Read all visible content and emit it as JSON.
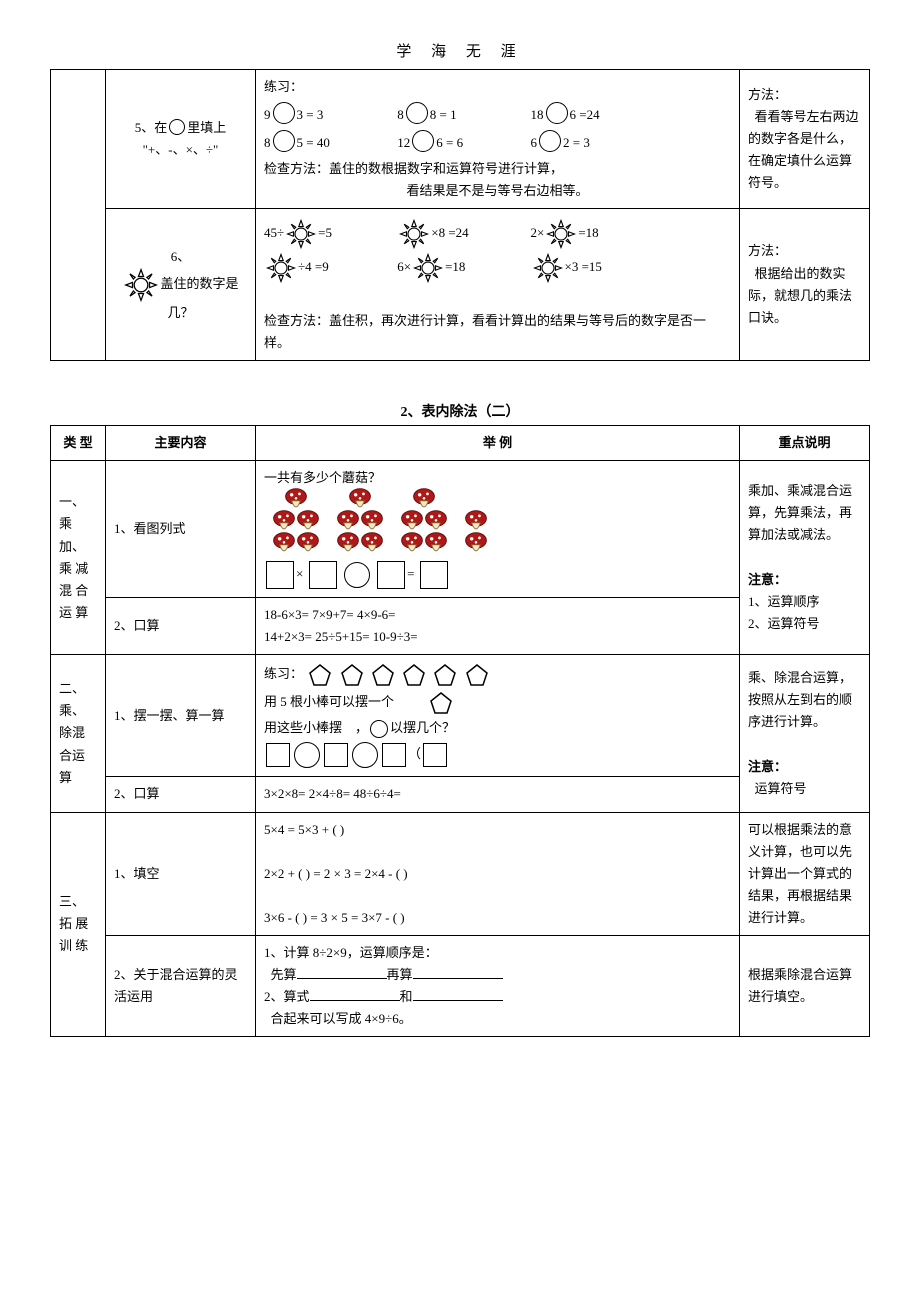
{
  "header": {
    "title": "学 海 无 涯"
  },
  "table1": {
    "row5": {
      "main_a": "5、在",
      "main_b": "里填上 \"+、-、×、÷\"",
      "ex_head": "练习：",
      "eqs1": [
        "9",
        "3 = 3",
        "8",
        "8 = 1",
        "18",
        "6 =24"
      ],
      "eqs2": [
        "8",
        "5 = 40",
        "12",
        "6 = 6",
        "6",
        "2 = 3"
      ],
      "check1": "检查方法：盖住的数根据数字和运算符号进行计算，",
      "check2": "看结果是不是与等号右边相等。",
      "note_head": "方法：",
      "note_body": "看看等号左右两边的数字各是什么，在确定填什么运算符号。"
    },
    "row6": {
      "main_num": "6、",
      "main_txt": "盖住的数字是几？",
      "eqs1": [
        "45÷",
        "=5",
        "",
        "×8 =24",
        "2×",
        "=18"
      ],
      "eqs2": [
        "",
        "÷4 =9",
        "6×",
        "=18",
        "",
        "×3 =15"
      ],
      "check": "检查方法：盖住积，再次进行计算，看看计算出的结果与等号后的数字是否一样。",
      "note_head": "方法：",
      "note_body": "根据给出的数实际，就想几的乘法口诀。"
    }
  },
  "section2_title": "2、表内除法（二）",
  "table2": {
    "headers": [
      "类 型",
      "主要内容",
      "举   例",
      "重点说明"
    ],
    "rowA": {
      "type": "一、\n乘 加、\n乘 减\n混 合\n运 算",
      "main1": "1、看图列式",
      "main2": "2、口算",
      "ex_q": "一共有多少个蘑菇？",
      "mushroom_groups": [
        5,
        5,
        5,
        2
      ],
      "calc_line1": "18-6×3=  7×9+7=   4×9-6=",
      "calc_line2": "14+2×3=  25÷5+15=  10-9÷3=",
      "note_p1": "乘加、乘减混合运算，先算乘法，再算加法或减法。",
      "note_head": "注意：",
      "note_l1": "1、运算顺序",
      "note_l2": "2、运算符号"
    },
    "rowB": {
      "type": "二、\n乘、除混合运算",
      "main1": "1、摆一摆、算一算",
      "main2": "2、口算",
      "ex_head": "练习：",
      "line1": "用 5 根小棒可以摆一个",
      "line2a": "用这些小棒摆",
      "line2b": "，",
      "line2c": "以摆几个？",
      "calc": "3×2×8=  2×4÷8=   48÷6÷4=",
      "note_p1": "乘、除混合运算，按照从左到右的顺序进行计算。",
      "note_head": "注意：",
      "note_l1": "运算符号"
    },
    "rowC": {
      "type": "三、\n拓 展\n训 练",
      "main1": "1、填空",
      "main2": "2、关于混合运算的灵活运用",
      "fill1": "5×4 = 5×3 + (   )",
      "fill2": "2×2 + (  ) = 2 × 3 = 2×4 - (  )",
      "fill3": "3×6 - (  ) = 3 × 5 = 3×7 - (  )",
      "q1a": "1、计算 8÷2×9，运算顺序是：",
      "q1b": "先算",
      "q1c": "再算",
      "q2a": "2、算式",
      "q2b": "和",
      "q2c": "合起来可以写成 4×9÷6。",
      "note1": "可以根据乘法的意义计算，也可以先计算出一个算式的结果，再根据结果进行计算。",
      "note2": "根据乘除混合运算进行填空。"
    }
  }
}
